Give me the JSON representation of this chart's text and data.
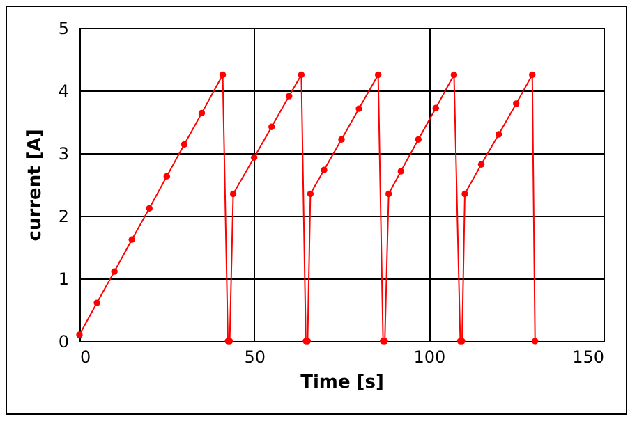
{
  "chart_data": {
    "type": "line",
    "xlabel": "Time [s]",
    "ylabel": "current [A]",
    "x": [
      0,
      5,
      10,
      15,
      20,
      25,
      30,
      35,
      41,
      42.5,
      43,
      44,
      50,
      55,
      60,
      63.5,
      64.8,
      65.3,
      66.1,
      70,
      75,
      80,
      85.5,
      86.9,
      87.4,
      88.5,
      92,
      97,
      102,
      107.2,
      109,
      109.5,
      110.3,
      115,
      120,
      125,
      129.6,
      130.4
    ],
    "series": [
      {
        "color": "#ff0000",
        "values": [
          0.1,
          0.61,
          1.11,
          1.62,
          2.12,
          2.63,
          3.14,
          3.64,
          4.25,
          0,
          0,
          2.35,
          2.93,
          3.42,
          3.91,
          4.25,
          0,
          0,
          2.35,
          2.73,
          3.22,
          3.71,
          4.25,
          0,
          0,
          2.35,
          2.71,
          3.22,
          3.72,
          4.25,
          0,
          0,
          2.35,
          2.82,
          3.3,
          3.79,
          4.25,
          0
        ]
      }
    ],
    "xlim": [
      0,
      150
    ],
    "xticks": [
      0,
      50,
      100,
      150
    ],
    "ylim": [
      0,
      5
    ],
    "yticks": [
      0,
      1,
      2,
      3,
      4,
      5
    ],
    "grid": true,
    "marker": "circle",
    "line_style": "solid"
  }
}
